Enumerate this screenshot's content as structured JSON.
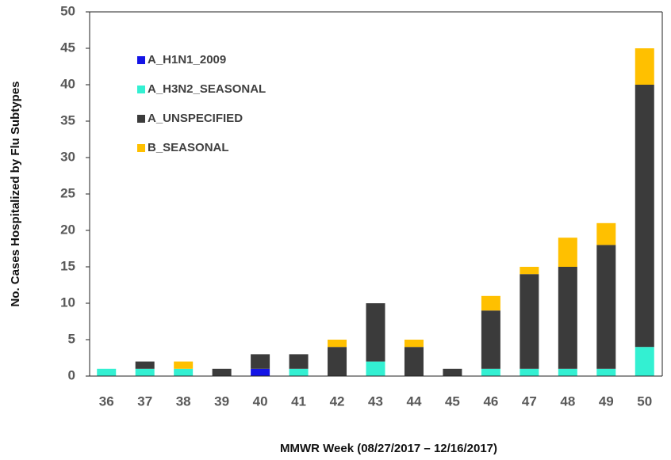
{
  "chart_data": {
    "type": "stacked_bar",
    "x_label": "MMWR Week (08/27/2017 – 12/16/2017)",
    "y_label": "No. Cases Hospitalized by Flu Subtypes",
    "categories": [
      "36",
      "37",
      "38",
      "39",
      "40",
      "41",
      "42",
      "43",
      "44",
      "45",
      "46",
      "47",
      "48",
      "49",
      "50"
    ],
    "series": [
      {
        "name": "A_H1N1_2009",
        "color": "#1414e6",
        "values": [
          0,
          0,
          0,
          0,
          1,
          0,
          0,
          0,
          0,
          0,
          0,
          0,
          0,
          0,
          0
        ]
      },
      {
        "name": "A_H3N2_SEASONAL",
        "color": "#33f0d2",
        "values": [
          1,
          1,
          1,
          0,
          0,
          1,
          0,
          2,
          0,
          0,
          1,
          1,
          1,
          1,
          4
        ]
      },
      {
        "name": "A_UNSPECIFIED",
        "color": "#3b3b3b",
        "values": [
          0,
          1,
          0,
          1,
          2,
          2,
          4,
          8,
          4,
          1,
          8,
          13,
          14,
          17,
          36
        ]
      },
      {
        "name": "B_SEASONAL",
        "color": "#ffc000",
        "values": [
          0,
          0,
          1,
          0,
          0,
          0,
          1,
          0,
          1,
          0,
          2,
          1,
          4,
          3,
          5
        ]
      }
    ],
    "ylim": [
      0,
      50
    ],
    "yticks": [
      0,
      5,
      10,
      15,
      20,
      25,
      30,
      35,
      40,
      45,
      50
    ],
    "legend": "top-left"
  }
}
